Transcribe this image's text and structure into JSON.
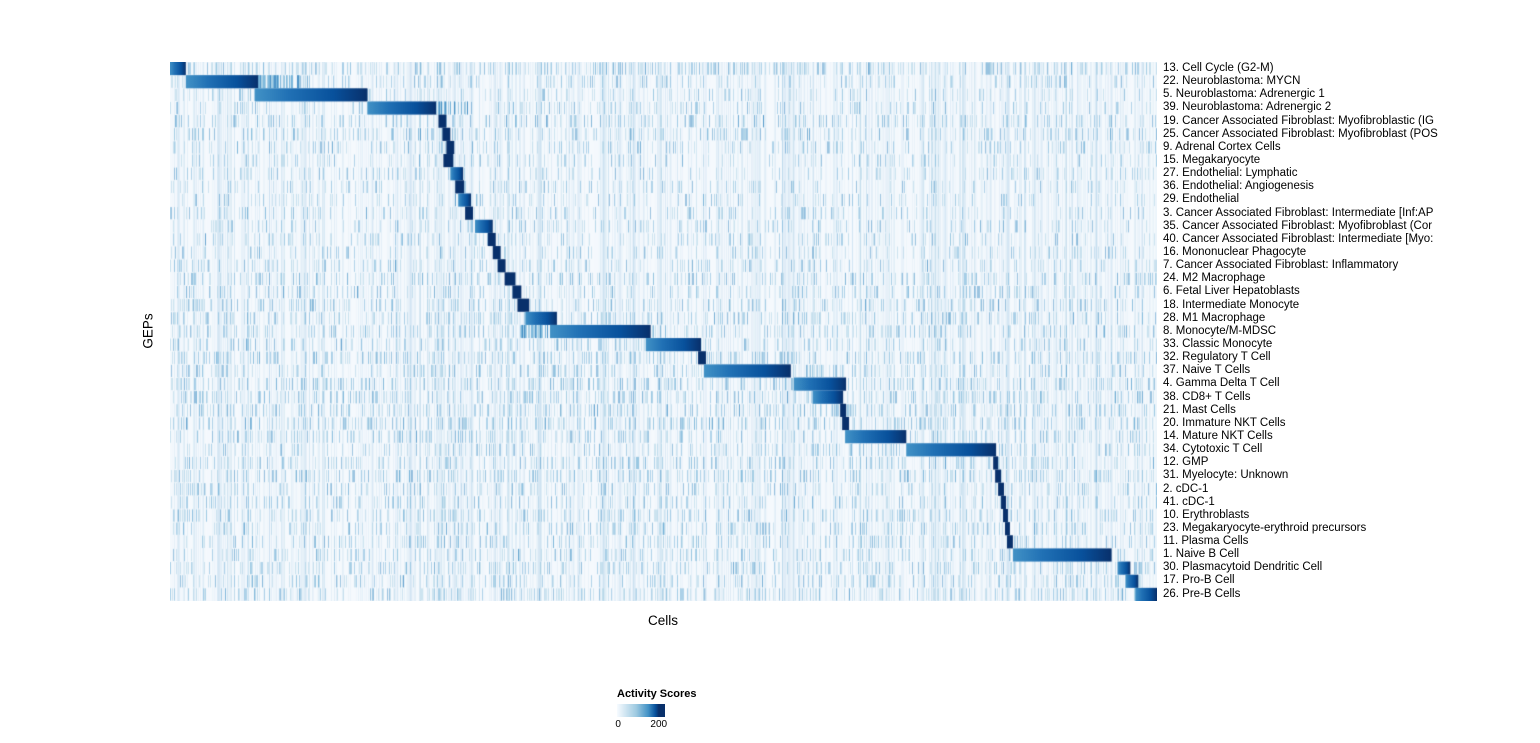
{
  "chart_data": {
    "type": "heatmap",
    "xlabel": "Cells",
    "ylabel": "GEPs",
    "x_tick_labels": [],
    "grid": false,
    "colormap": {
      "name": "Blues",
      "min_color": "#f7fbff",
      "mid_color": "#6baed6",
      "max_color": "#08306b"
    },
    "legend": {
      "title": "Activity Scores",
      "ticks": [
        "0",
        "200"
      ],
      "tick_values": [
        0,
        200
      ],
      "position": "bottom"
    },
    "rows": [
      {
        "label": "13. Cell Cycle (G2-M)",
        "block": [
          0.0,
          0.016
        ],
        "noise": 0.7
      },
      {
        "label": "22. Neuroblastoma: MYCN",
        "block": [
          0.016,
          0.09
        ],
        "noise": 0.3,
        "tail": 0.16
      },
      {
        "label": "5. Neuroblastoma: Adrenergic 1",
        "block": [
          0.086,
          0.2
        ],
        "noise": 0.25
      },
      {
        "label": "39. Neuroblastoma: Adrenergic 2",
        "block": [
          0.2,
          0.27
        ],
        "noise": 0.3,
        "tail": 0.305
      },
      {
        "label": "19. Cancer Associated Fibroblast: Myofibroblastic (IG",
        "block": [
          0.272,
          0.28
        ],
        "noise": 0.5
      },
      {
        "label": "25. Cancer Associated Fibroblast: Myofibroblast (POS",
        "block": [
          0.276,
          0.284
        ],
        "noise": 0.5
      },
      {
        "label": "9. Adrenal Cortex Cells",
        "block": [
          0.28,
          0.288
        ],
        "noise": 0.35
      },
      {
        "label": "15. Megakaryocyte",
        "block": [
          0.277,
          0.287
        ],
        "noise": 0.25
      },
      {
        "label": "27. Endothelial: Lymphatic",
        "block": [
          0.284,
          0.297
        ],
        "noise": 0.25
      },
      {
        "label": "36. Endothelial: Angiogenesis",
        "block": [
          0.289,
          0.298
        ],
        "noise": 0.25
      },
      {
        "label": "29. Endothelial",
        "block": [
          0.292,
          0.305
        ],
        "noise": 0.25
      },
      {
        "label": "3. Cancer Associated Fibroblast: Intermediate [Inf:AP",
        "block": [
          0.299,
          0.307
        ],
        "noise": 0.3
      },
      {
        "label": "35. Cancer Associated Fibroblast: Myofibroblast (Cor",
        "block": [
          0.309,
          0.327
        ],
        "noise": 0.3
      },
      {
        "label": "40. Cancer Associated Fibroblast: Intermediate [Myo:",
        "block": [
          0.322,
          0.33
        ],
        "noise": 0.3
      },
      {
        "label": "16. Mononuclear Phagocyte",
        "block": [
          0.327,
          0.335
        ],
        "noise": 0.3
      },
      {
        "label": "7. Cancer Associated Fibroblast: Inflammatory",
        "block": [
          0.332,
          0.34
        ],
        "noise": 0.35
      },
      {
        "label": "24. M2 Macrophage",
        "block": [
          0.339,
          0.35
        ],
        "noise": 0.5
      },
      {
        "label": "6. Fetal Liver Hepatoblasts",
        "block": [
          0.347,
          0.356
        ],
        "noise": 0.4
      },
      {
        "label": "18. Intermediate Monocyte",
        "block": [
          0.352,
          0.364
        ],
        "noise": 0.5
      },
      {
        "label": "28. M1 Macrophage",
        "block": [
          0.36,
          0.392
        ],
        "noise": 0.55
      },
      {
        "label": "8. Monocyte/M-MDSC",
        "block": [
          0.385,
          0.487
        ],
        "noise": 0.5,
        "lead": 0.356
      },
      {
        "label": "33. Classic Monocyte",
        "block": [
          0.482,
          0.538
        ],
        "noise": 0.4
      },
      {
        "label": "32. Regulatory T Cell",
        "block": [
          0.535,
          0.543
        ],
        "noise": 0.6
      },
      {
        "label": "37. Naive T Cells",
        "block": [
          0.541,
          0.629
        ],
        "noise": 0.5
      },
      {
        "label": "4. Gamma Delta T Cell",
        "block": [
          0.632,
          0.685
        ],
        "noise": 0.65
      },
      {
        "label": "38. CD8+ T Cells",
        "block": [
          0.651,
          0.682
        ],
        "noise": 0.65
      },
      {
        "label": "21. Mast Cells",
        "block": [
          0.679,
          0.685
        ],
        "noise": 0.6
      },
      {
        "label": "20. Immature NKT Cells",
        "block": [
          0.681,
          0.688
        ],
        "noise": 0.65
      },
      {
        "label": "14. Mature NKT Cells",
        "block": [
          0.684,
          0.746
        ],
        "noise": 0.5
      },
      {
        "label": "34. Cytotoxic T Cell",
        "block": [
          0.746,
          0.837
        ],
        "noise": 0.4
      },
      {
        "label": "12. GMP",
        "block": [
          0.834,
          0.839
        ],
        "noise": 0.5
      },
      {
        "label": "31. Myelocyte: Unknown",
        "block": [
          0.836,
          0.842
        ],
        "noise": 0.6
      },
      {
        "label": "2. cDC-1",
        "block": [
          0.839,
          0.845
        ],
        "noise": 0.4
      },
      {
        "label": "41. cDC-1",
        "block": [
          0.842,
          0.847
        ],
        "noise": 0.4
      },
      {
        "label": "10. Erythroblasts",
        "block": [
          0.844,
          0.849
        ],
        "noise": 0.5
      },
      {
        "label": "23. Megakaryocyte-erythroid precursors",
        "block": [
          0.846,
          0.851
        ],
        "noise": 0.5
      },
      {
        "label": "11. Plasma Cells",
        "block": [
          0.848,
          0.854
        ],
        "noise": 0.4
      },
      {
        "label": "1. Naive B Cell",
        "block": [
          0.854,
          0.954
        ],
        "noise": 0.4
      },
      {
        "label": "30. Plasmacytoid Dendritic Cell",
        "block": [
          0.96,
          0.973
        ],
        "noise": 0.5
      },
      {
        "label": "17. Pro-B Cell",
        "block": [
          0.968,
          0.981
        ],
        "noise": 0.4
      },
      {
        "label": "26. Pre-B Cells",
        "block": [
          0.978,
          1.0
        ],
        "noise": 0.5
      }
    ]
  }
}
